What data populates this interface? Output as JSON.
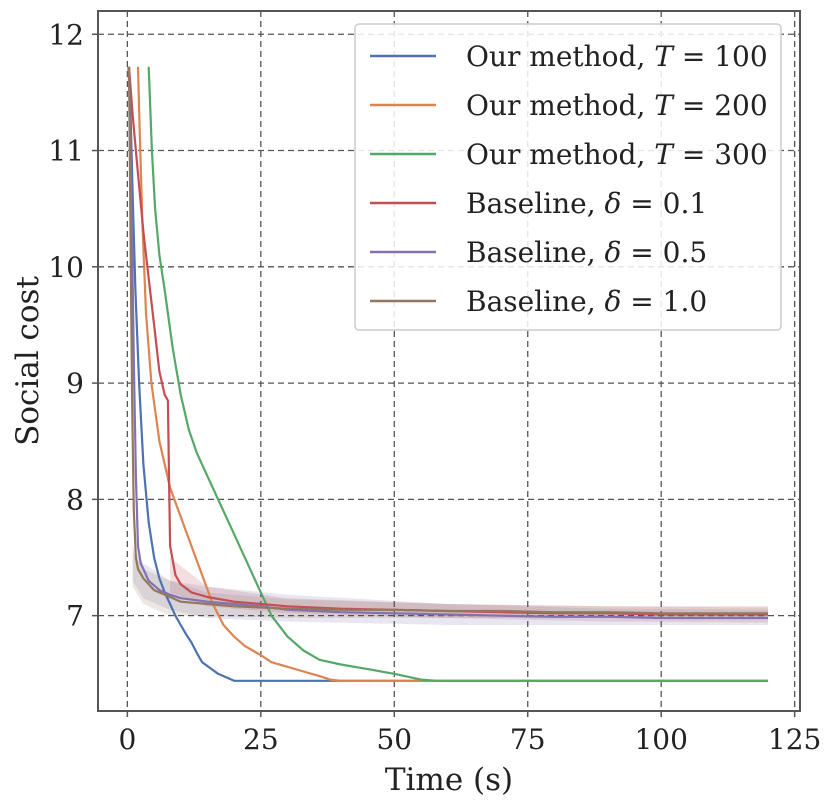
{
  "chart_data": {
    "type": "line",
    "xlabel": "Time (s)",
    "ylabel": "Social cost",
    "xlim": [
      -5.5,
      126
    ],
    "ylim": [
      6.18,
      12.2
    ],
    "xticks": [
      0,
      25,
      50,
      75,
      100,
      125
    ],
    "yticks": [
      7,
      8,
      9,
      10,
      11,
      12
    ],
    "xtick_labels": [
      "0",
      "25",
      "50",
      "75",
      "100",
      "125"
    ],
    "ytick_labels": [
      "7",
      "8",
      "9",
      "10",
      "11",
      "12"
    ],
    "grid": true,
    "legend_position": "top-right",
    "series": [
      {
        "name": "Our method, T = 100",
        "legend_prefix": "Our method, ",
        "legend_var": "T",
        "legend_value": " = 100",
        "color": "#4c72b0",
        "points": [
          [
            0.2,
            11.72
          ],
          [
            0.6,
            11.3
          ],
          [
            1.0,
            10.6
          ],
          [
            1.5,
            9.8
          ],
          [
            2.2,
            9.0
          ],
          [
            3.0,
            8.3
          ],
          [
            4.0,
            7.8
          ],
          [
            5.0,
            7.5
          ],
          [
            6.0,
            7.32
          ],
          [
            7.0,
            7.2
          ],
          [
            8.0,
            7.1
          ],
          [
            9.0,
            7.0
          ],
          [
            10.0,
            6.92
          ],
          [
            11.0,
            6.84
          ],
          [
            12.0,
            6.77
          ],
          [
            13.0,
            6.68
          ],
          [
            14.0,
            6.6
          ],
          [
            15.5,
            6.55
          ],
          [
            17.0,
            6.5
          ],
          [
            18.5,
            6.47
          ],
          [
            20.0,
            6.44
          ],
          [
            22.0,
            6.44
          ],
          [
            120.0,
            6.44
          ]
        ]
      },
      {
        "name": "Our method, T = 200",
        "legend_prefix": "Our method, ",
        "legend_var": "T",
        "legend_value": " = 200",
        "color": "#dd8452",
        "points": [
          [
            2.0,
            11.72
          ],
          [
            2.3,
            11.2
          ],
          [
            2.8,
            10.4
          ],
          [
            3.5,
            9.6
          ],
          [
            4.5,
            9.0
          ],
          [
            6.0,
            8.5
          ],
          [
            8.0,
            8.1
          ],
          [
            10.0,
            7.85
          ],
          [
            12.0,
            7.6
          ],
          [
            14.0,
            7.35
          ],
          [
            16.0,
            7.1
          ],
          [
            18.0,
            6.92
          ],
          [
            20.0,
            6.82
          ],
          [
            22.0,
            6.74
          ],
          [
            25.0,
            6.66
          ],
          [
            27.0,
            6.6
          ],
          [
            30.0,
            6.56
          ],
          [
            33.0,
            6.52
          ],
          [
            36.0,
            6.48
          ],
          [
            38.0,
            6.45
          ],
          [
            40.0,
            6.44
          ],
          [
            120.0,
            6.44
          ]
        ]
      },
      {
        "name": "Our method, T = 300",
        "legend_prefix": "Our method, ",
        "legend_var": "T",
        "legend_value": " = 300",
        "color": "#55a868",
        "points": [
          [
            4.0,
            11.72
          ],
          [
            4.6,
            11.0
          ],
          [
            5.2,
            10.5
          ],
          [
            6.0,
            10.1
          ],
          [
            7.0,
            9.8
          ],
          [
            8.5,
            9.3
          ],
          [
            10.0,
            8.9
          ],
          [
            11.5,
            8.6
          ],
          [
            13.0,
            8.4
          ],
          [
            15.0,
            8.2
          ],
          [
            17.0,
            8.0
          ],
          [
            19.0,
            7.8
          ],
          [
            21.0,
            7.6
          ],
          [
            23.0,
            7.4
          ],
          [
            25.0,
            7.2
          ],
          [
            27.0,
            7.0
          ],
          [
            30.0,
            6.82
          ],
          [
            33.0,
            6.7
          ],
          [
            36.0,
            6.62
          ],
          [
            40.0,
            6.58
          ],
          [
            45.0,
            6.54
          ],
          [
            50.0,
            6.5
          ],
          [
            55.0,
            6.45
          ],
          [
            58.0,
            6.44
          ],
          [
            120.0,
            6.44
          ]
        ]
      },
      {
        "name": "Baseline, δ = 0.1",
        "legend_prefix": "Baseline, ",
        "legend_var": "δ",
        "legend_value": " = 0.1",
        "color": "#c44e52",
        "points": [
          [
            0.3,
            11.72
          ],
          [
            1.0,
            11.3
          ],
          [
            2.0,
            10.8
          ],
          [
            3.0,
            10.3
          ],
          [
            4.0,
            9.9
          ],
          [
            5.0,
            9.5
          ],
          [
            6.0,
            9.1
          ],
          [
            7.0,
            8.9
          ],
          [
            7.6,
            8.85
          ],
          [
            7.8,
            8.2
          ],
          [
            8.0,
            7.6
          ],
          [
            9.0,
            7.35
          ],
          [
            10.0,
            7.27
          ],
          [
            12.0,
            7.2
          ],
          [
            15.0,
            7.16
          ],
          [
            20.0,
            7.12
          ],
          [
            25.0,
            7.1
          ],
          [
            30.0,
            7.08
          ],
          [
            40.0,
            7.06
          ],
          [
            50.0,
            7.05
          ],
          [
            60.0,
            7.04
          ],
          [
            70.0,
            7.03
          ],
          [
            80.0,
            7.02
          ],
          [
            90.0,
            7.02
          ],
          [
            100.0,
            7.01
          ],
          [
            110.0,
            7.01
          ],
          [
            120.0,
            7.01
          ]
        ]
      },
      {
        "name": "Baseline, δ = 0.5",
        "legend_prefix": "Baseline, ",
        "legend_var": "δ",
        "legend_value": " = 0.5",
        "color": "#8172b3",
        "points": [
          [
            0.3,
            11.72
          ],
          [
            0.8,
            10.5
          ],
          [
            1.2,
            9.2
          ],
          [
            1.6,
            8.2
          ],
          [
            2.0,
            7.6
          ],
          [
            2.5,
            7.45
          ],
          [
            3.0,
            7.4
          ],
          [
            4.0,
            7.3
          ],
          [
            6.0,
            7.22
          ],
          [
            8.0,
            7.18
          ],
          [
            10.0,
            7.15
          ],
          [
            15.0,
            7.12
          ],
          [
            20.0,
            7.1
          ],
          [
            25.0,
            7.08
          ],
          [
            30.0,
            7.05
          ],
          [
            40.0,
            7.03
          ],
          [
            50.0,
            7.02
          ],
          [
            60.0,
            7.01
          ],
          [
            70.0,
            7.0
          ],
          [
            80.0,
            6.99
          ],
          [
            90.0,
            6.99
          ],
          [
            100.0,
            6.98
          ],
          [
            110.0,
            6.98
          ],
          [
            120.0,
            6.98
          ]
        ]
      },
      {
        "name": "Baseline, δ = 1.0",
        "legend_prefix": "Baseline, ",
        "legend_var": "δ",
        "legend_value": " = 1.0",
        "color": "#937860",
        "points": [
          [
            0.3,
            11.72
          ],
          [
            0.6,
            10.2
          ],
          [
            0.9,
            8.8
          ],
          [
            1.2,
            7.9
          ],
          [
            1.6,
            7.5
          ],
          [
            2.0,
            7.4
          ],
          [
            3.0,
            7.32
          ],
          [
            5.0,
            7.22
          ],
          [
            8.0,
            7.16
          ],
          [
            10.0,
            7.12
          ],
          [
            15.0,
            7.1
          ],
          [
            20.0,
            7.08
          ],
          [
            25.0,
            7.07
          ],
          [
            30.0,
            7.06
          ],
          [
            40.0,
            7.05
          ],
          [
            50.0,
            7.05
          ],
          [
            60.0,
            7.04
          ],
          [
            70.0,
            7.04
          ],
          [
            80.0,
            7.03
          ],
          [
            90.0,
            7.03
          ],
          [
            100.0,
            7.02
          ],
          [
            110.0,
            7.02
          ],
          [
            120.0,
            7.02
          ]
        ]
      }
    ],
    "bands": [
      {
        "series": "Baseline, δ = 0.1",
        "color": "#c44e52",
        "x": [
          8,
          15,
          30,
          60,
          90,
          120
        ],
        "lower": [
          7.2,
          7.08,
          7.02,
          6.98,
          6.95,
          6.94
        ],
        "upper": [
          7.5,
          7.25,
          7.15,
          7.1,
          7.08,
          7.08
        ]
      },
      {
        "series": "Baseline, δ = 0.5",
        "color": "#8172b3",
        "x": [
          1,
          3,
          8,
          15,
          30,
          60,
          90,
          120
        ],
        "lower": [
          7.3,
          7.15,
          7.05,
          6.98,
          6.95,
          6.92,
          6.92,
          6.92
        ],
        "upper": [
          7.6,
          7.45,
          7.3,
          7.25,
          7.18,
          7.1,
          7.06,
          7.05
        ]
      },
      {
        "series": "Baseline, δ = 1.0",
        "color": "#937860",
        "x": [
          1,
          3,
          8,
          15,
          30,
          60,
          90,
          120
        ],
        "lower": [
          7.25,
          7.1,
          7.0,
          7.0,
          6.98,
          6.98,
          6.98,
          6.98
        ],
        "upper": [
          7.55,
          7.4,
          7.3,
          7.2,
          7.14,
          7.1,
          7.08,
          7.07
        ]
      }
    ]
  }
}
